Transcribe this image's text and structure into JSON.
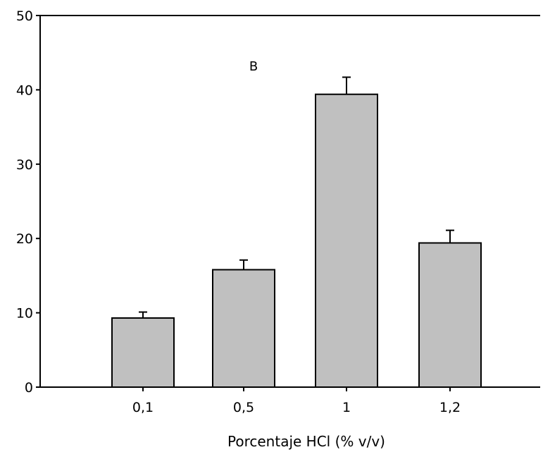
{
  "chart_data": {
    "type": "bar",
    "categories": [
      "0,1",
      "0,5",
      "1",
      "1,2"
    ],
    "series": [
      {
        "values": [
          9.3,
          15.8,
          39.4,
          19.4
        ],
        "errors": [
          0.8,
          1.3,
          2.3,
          1.7
        ]
      }
    ],
    "title": "",
    "annotation": "B",
    "xlabel": "Porcentaje HCl (% v/v)",
    "ylabel": "",
    "ylim": [
      0,
      50
    ],
    "yticks": [
      0,
      10,
      20,
      30,
      40,
      50
    ],
    "grid": false,
    "legend": "none",
    "colors": {
      "bar_fill": "#c0c0c0",
      "bar_stroke": "#000000",
      "axis": "#000000",
      "background": "#ffffff"
    }
  }
}
